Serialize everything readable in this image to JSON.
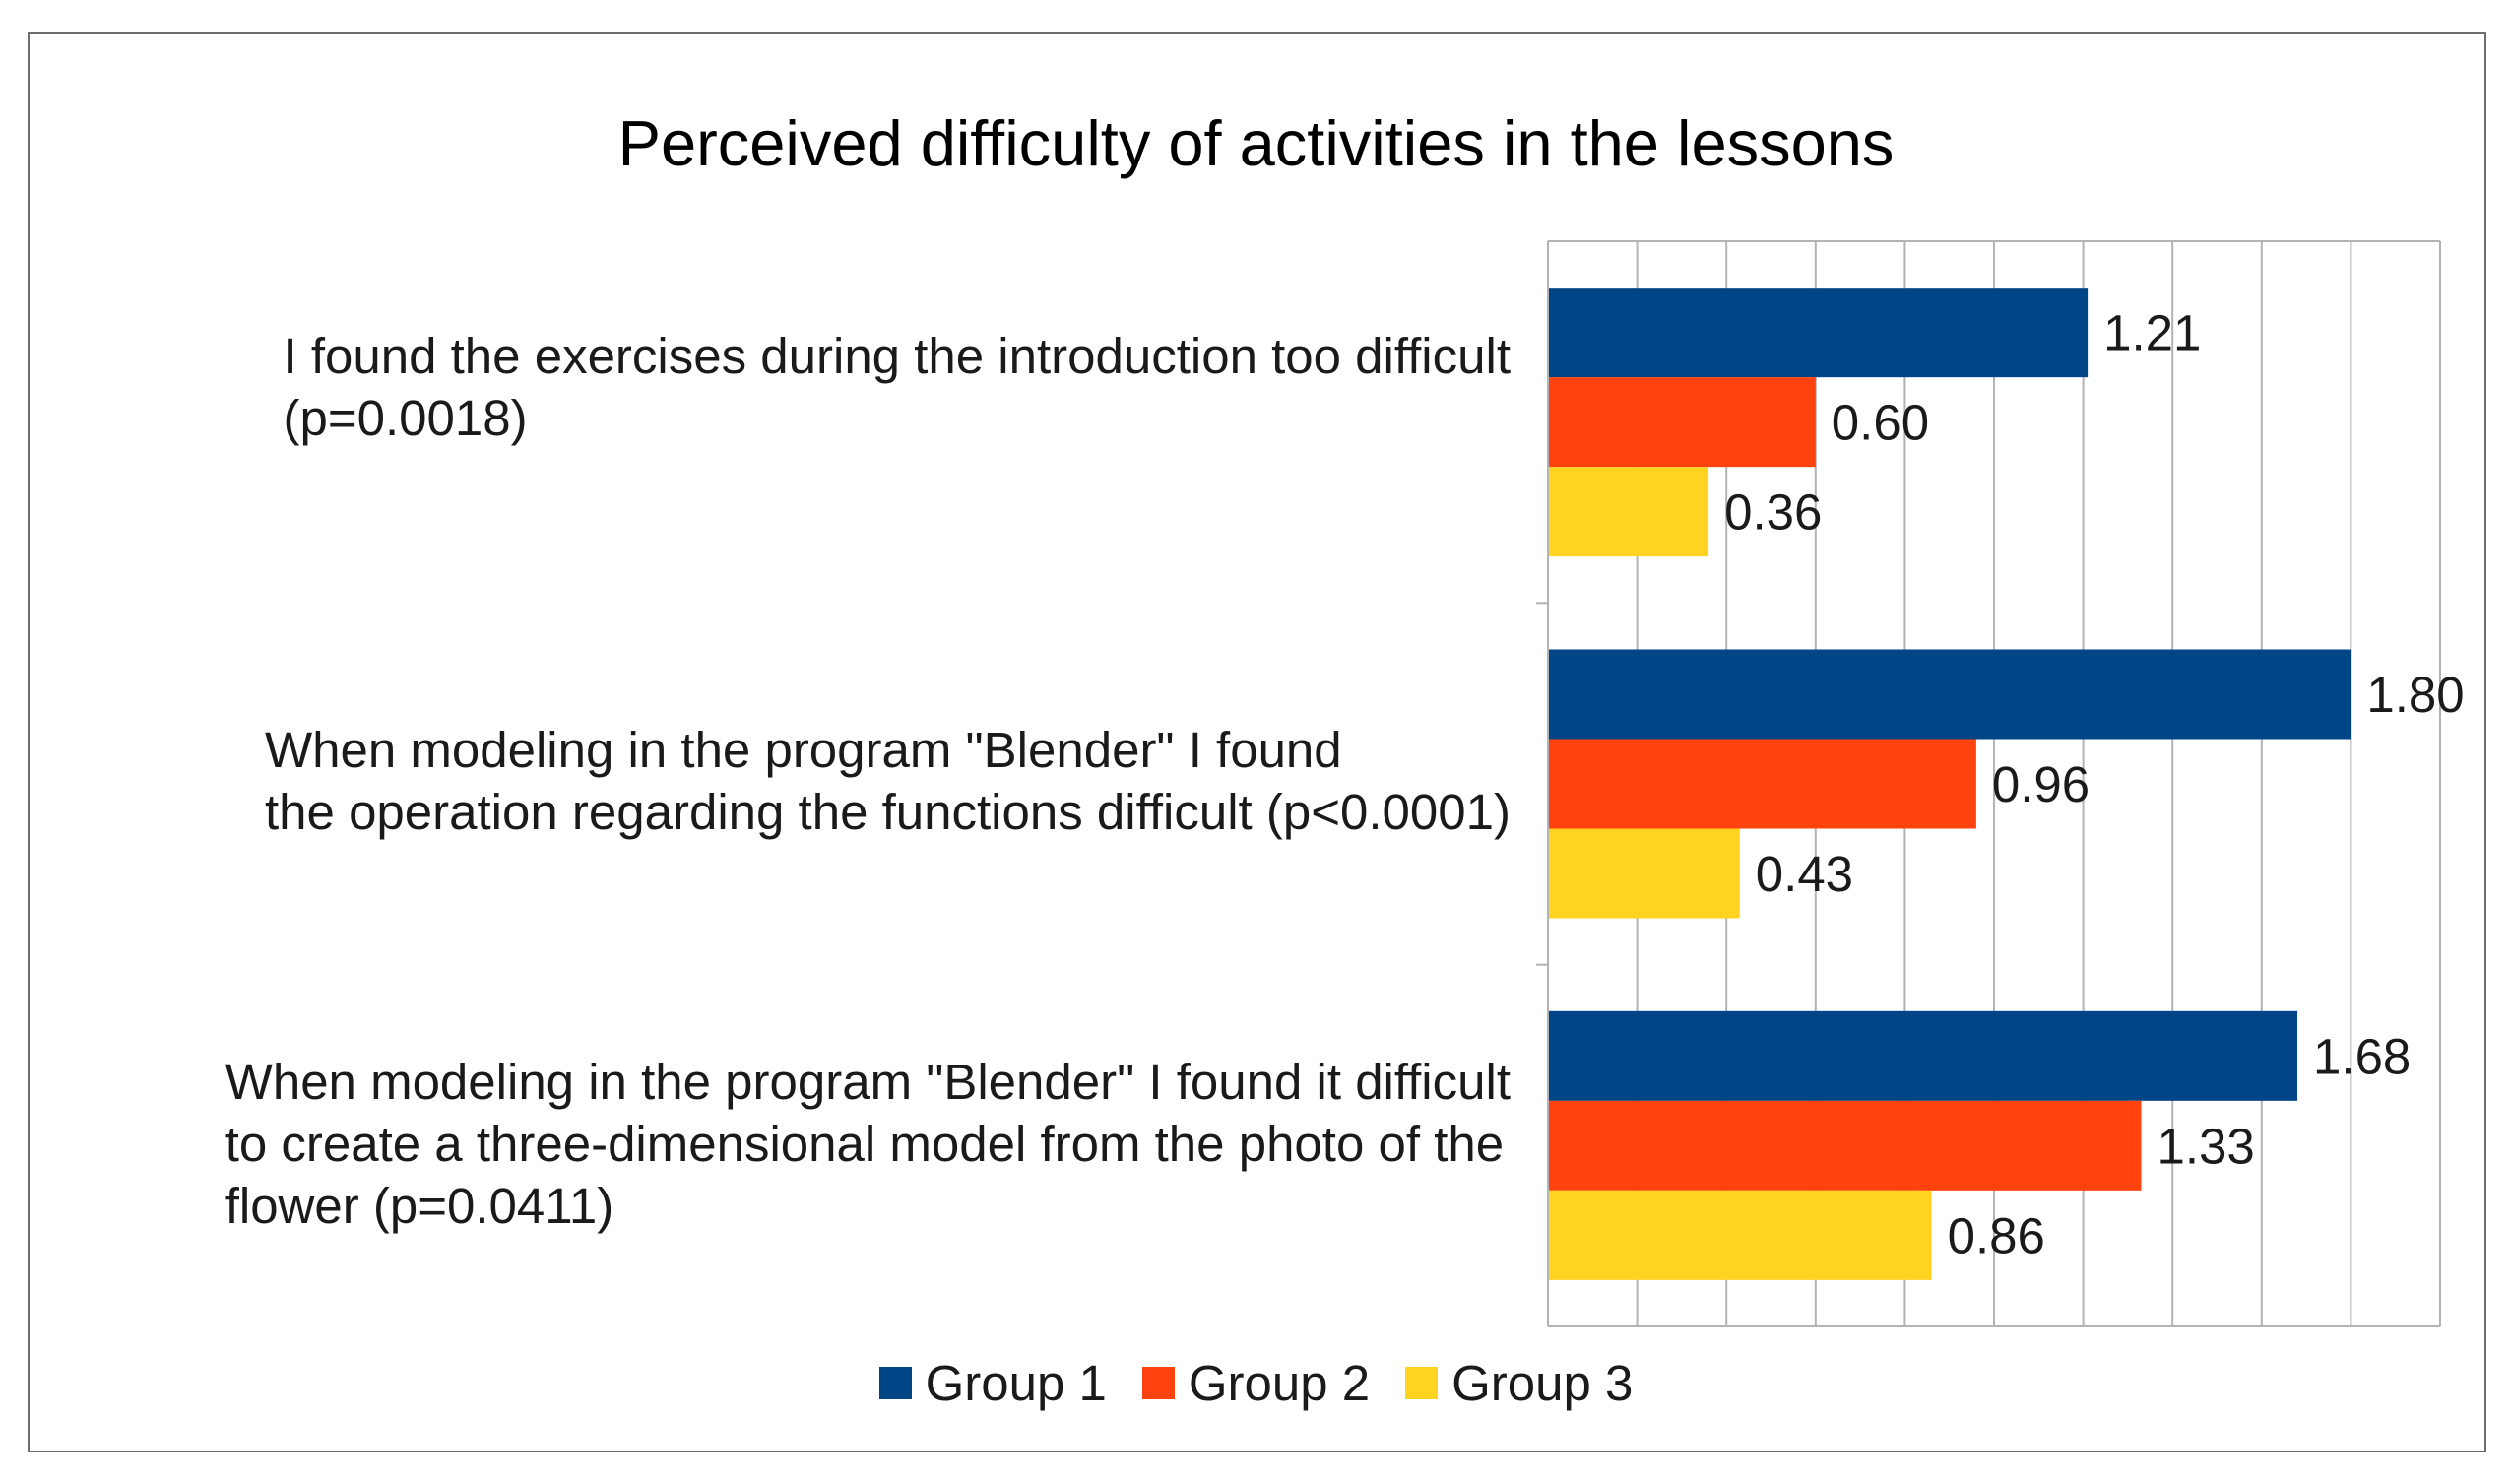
{
  "chart_data": {
    "type": "bar",
    "orientation": "horizontal",
    "title": "Perceived difficulty of activities in the lessons",
    "categories": [
      "I found the exercises during the introduction too difficult\n(p=0.0018)",
      "When modeling in the program \"Blender\" I found\nthe operation regarding the functions difficult (p<0.0001)",
      "When modeling in the program \"Blender\" I found it difficult\nto create a three-dimensional model from the photo of the\nflower (p=0.0411)"
    ],
    "series": [
      {
        "name": "Group 1",
        "color": "#004586",
        "values": [
          1.21,
          1.8,
          1.68
        ],
        "labels": [
          "1.21",
          "1.80",
          "1.68"
        ]
      },
      {
        "name": "Group 2",
        "color": "#ff420e",
        "values": [
          0.6,
          0.96,
          1.33
        ],
        "labels": [
          "0.60",
          "0.96",
          "1.33"
        ]
      },
      {
        "name": "Group 3",
        "color": "#ffd320",
        "values": [
          0.36,
          0.43,
          0.86
        ],
        "labels": [
          "0.36",
          "0.43",
          "0.86"
        ]
      }
    ],
    "xlim": [
      0,
      2.0
    ],
    "grid_step": 0.2,
    "grid": true,
    "legend_position": "bottom",
    "xlabel": "",
    "ylabel": ""
  }
}
